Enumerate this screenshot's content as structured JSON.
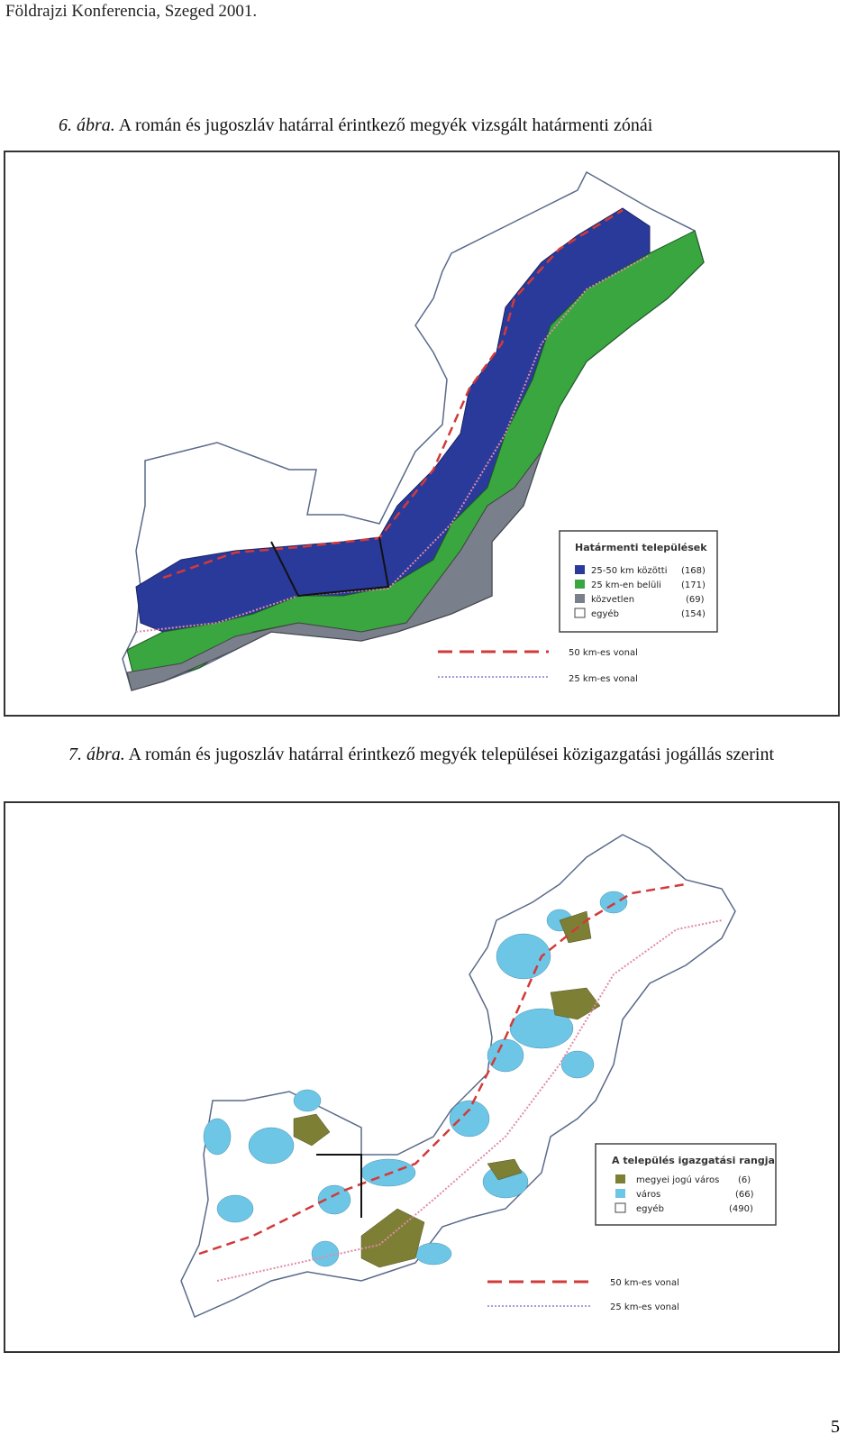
{
  "header": {
    "title": "Földrajzi Konferencia, Szeged 2001."
  },
  "figure1": {
    "label": "6. ábra.",
    "caption": "A román és jugoszláv határral érintkező megyék vizsgált határmenti zónái",
    "legend": {
      "title": "Határmenti települések",
      "items": [
        {
          "name": "25-50 km közötti",
          "count": "(168)"
        },
        {
          "name": "25 km-en belüli",
          "count": "(171)"
        },
        {
          "name": "közvetlen",
          "count": "(69)"
        },
        {
          "name": "egyéb",
          "count": "(154)"
        }
      ],
      "lines": [
        "50 km-es vonal",
        "25 km-es vonal"
      ]
    }
  },
  "figure2": {
    "label": "7. ábra.",
    "caption": "A román és jugoszláv határral érintkező megyék települései közigazgatási jogállás szerint",
    "legend": {
      "title": "A település igazgatási rangja",
      "items": [
        {
          "name": "megyei jogú város",
          "count": "(6)"
        },
        {
          "name": "város",
          "count": "(66)"
        },
        {
          "name": "egyéb",
          "count": "(490)"
        }
      ],
      "lines": [
        "50 km-es vonal",
        "25 km-es vonal"
      ]
    }
  },
  "footer": {
    "page_number": "5"
  }
}
